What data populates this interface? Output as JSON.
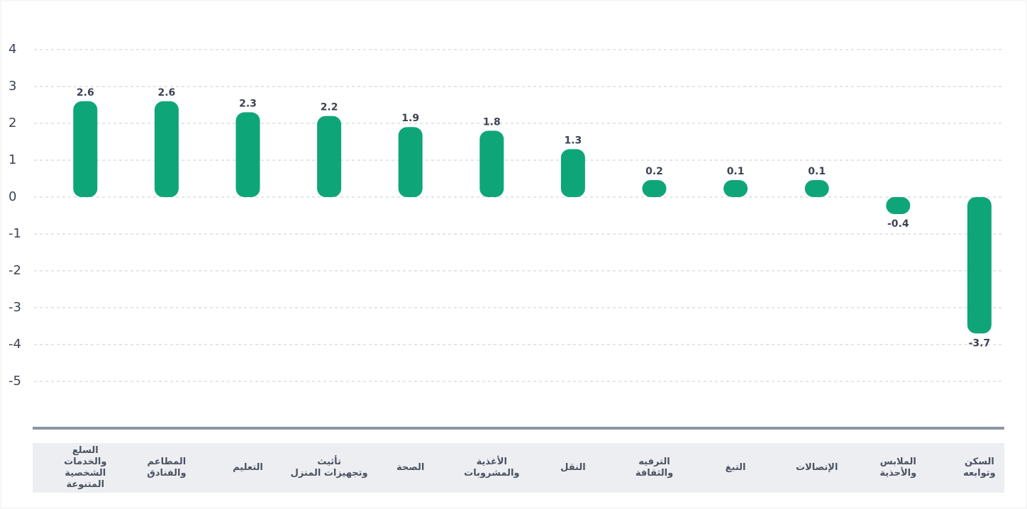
{
  "chart_data": {
    "type": "bar",
    "categories": [
      "السلع\nوالخدمات الشخصية\nالمتنوعة",
      "المطاعم\nوالفنادق",
      "التعليم",
      "تأثيث\nوتجهيزات المنزل",
      "الصحة",
      "الأغذية\nوالمشروبات",
      "النقل",
      "الترفيه\nوالثقافة",
      "التبغ",
      "الإتصالات",
      "الملابس\nوالأحذية",
      "السكن\nوتوابعه"
    ],
    "values": [
      2.6,
      2.6,
      2.3,
      2.2,
      1.9,
      1.8,
      1.3,
      0.2,
      0.1,
      0.1,
      -0.4,
      -3.7
    ],
    "color": "#0ea678",
    "ylim": [
      -5,
      4
    ],
    "yticks": [
      4,
      3,
      2,
      1,
      0,
      -1,
      -2,
      -3,
      -4,
      -5
    ],
    "grid": true
  }
}
